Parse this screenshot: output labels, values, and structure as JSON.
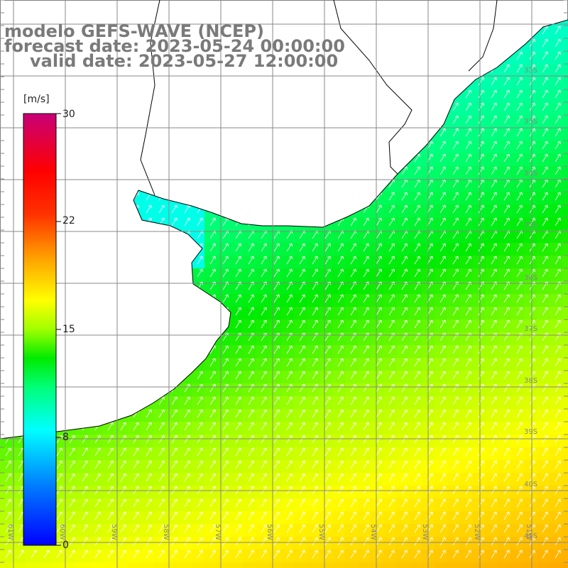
{
  "title": {
    "line1": "modelo GEFS-WAVE (NCEP)",
    "line2": "forecast date: 2023-05-24 00:00:00",
    "line3": "valid date: 2023-05-27 12:00:00"
  },
  "colorbar": {
    "unit": "[m/s]",
    "min": 0,
    "max": 30,
    "ticks": [
      "30",
      "22",
      "15",
      "8",
      "0"
    ],
    "tick_values": [
      30,
      22,
      15,
      8,
      0
    ]
  },
  "lat_labels": [
    "32S",
    "33S",
    "34S",
    "35S",
    "36S",
    "37S",
    "38S",
    "39S",
    "40S",
    "41S"
  ],
  "lon_labels": [
    "61W",
    "60W",
    "59W",
    "58W",
    "57W",
    "56W",
    "55W",
    "54W",
    "53W",
    "52W",
    "51W"
  ],
  "colors": {
    "land": "#ffffff",
    "coast": "#000000",
    "grid": "#888888",
    "title": "#7a7a7a"
  },
  "chart_data": {
    "type": "heatmap",
    "variable": "wind speed",
    "unit": "m/s",
    "colorbar_range": [
      0,
      30
    ],
    "region": {
      "lon": [
        -62,
        -50
      ],
      "lat": [
        -41.5,
        -31
      ]
    },
    "approx_values": [
      {
        "area": "Rio de la Plata estuary",
        "speed": 9
      },
      {
        "area": "offshore 36S 55W",
        "speed": 12
      },
      {
        "area": "offshore 39S 53W",
        "speed": 15
      },
      {
        "area": "offshore 41S 51W",
        "speed": 19
      }
    ],
    "wind_direction": "from SW (arrows pointing NE)"
  }
}
